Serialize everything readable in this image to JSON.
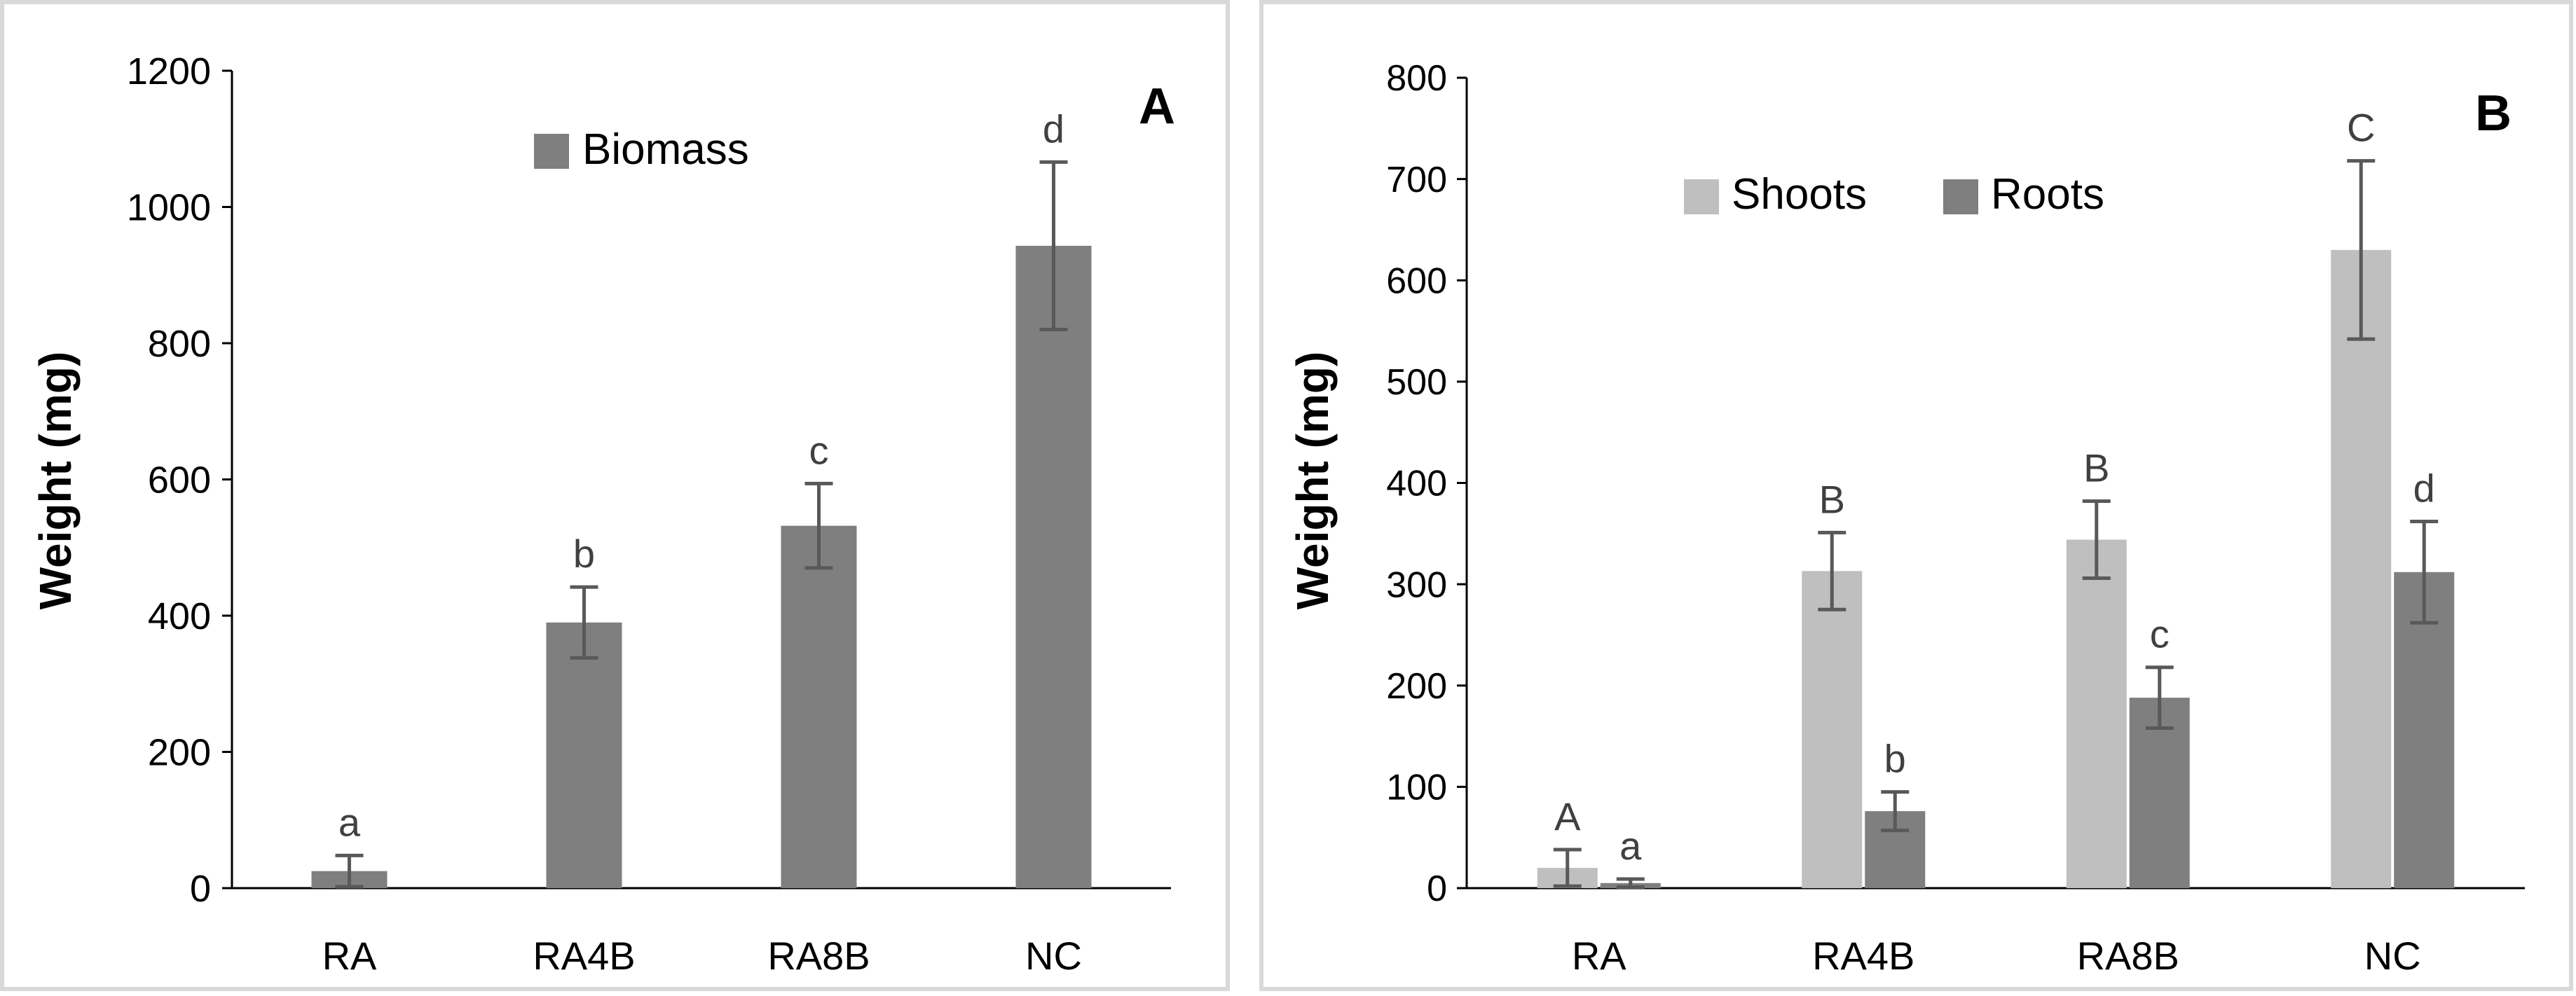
{
  "chart_data": [
    {
      "type": "bar",
      "panel_label": "A",
      "categories": [
        "RA",
        "RA4B",
        "RA8B",
        "NC"
      ],
      "series": [
        {
          "name": "Biomass",
          "color": "#7f7f7f",
          "values": [
            25,
            390,
            532,
            943
          ],
          "errors": [
            23,
            52,
            62,
            123
          ]
        }
      ],
      "letters": [
        [
          "a",
          "b",
          "c",
          "d"
        ]
      ],
      "ylabel": "Weight (mg)",
      "ylim": [
        0,
        1200
      ],
      "yticks": [
        0,
        200,
        400,
        600,
        800,
        1000,
        1200
      ],
      "legend": "top-center"
    },
    {
      "type": "bar",
      "panel_label": "B",
      "categories": [
        "RA",
        "RA4B",
        "RA8B",
        "NC"
      ],
      "series": [
        {
          "name": "Shoots",
          "color": "#bfbfbf",
          "values": [
            20,
            313,
            344,
            630
          ],
          "errors": [
            18,
            38,
            38,
            88
          ]
        },
        {
          "name": "Roots",
          "color": "#7f7f7f",
          "values": [
            5,
            76,
            188,
            312
          ],
          "errors": [
            4,
            19,
            30,
            50
          ]
        }
      ],
      "letters": [
        [
          "A",
          "B",
          "B",
          "C"
        ],
        [
          "a",
          "b",
          "c",
          "d"
        ]
      ],
      "ylabel": "Weight (mg)",
      "ylim": [
        0,
        800
      ],
      "yticks": [
        0,
        100,
        200,
        300,
        400,
        500,
        600,
        700,
        800
      ],
      "legend": "top-center"
    }
  ]
}
